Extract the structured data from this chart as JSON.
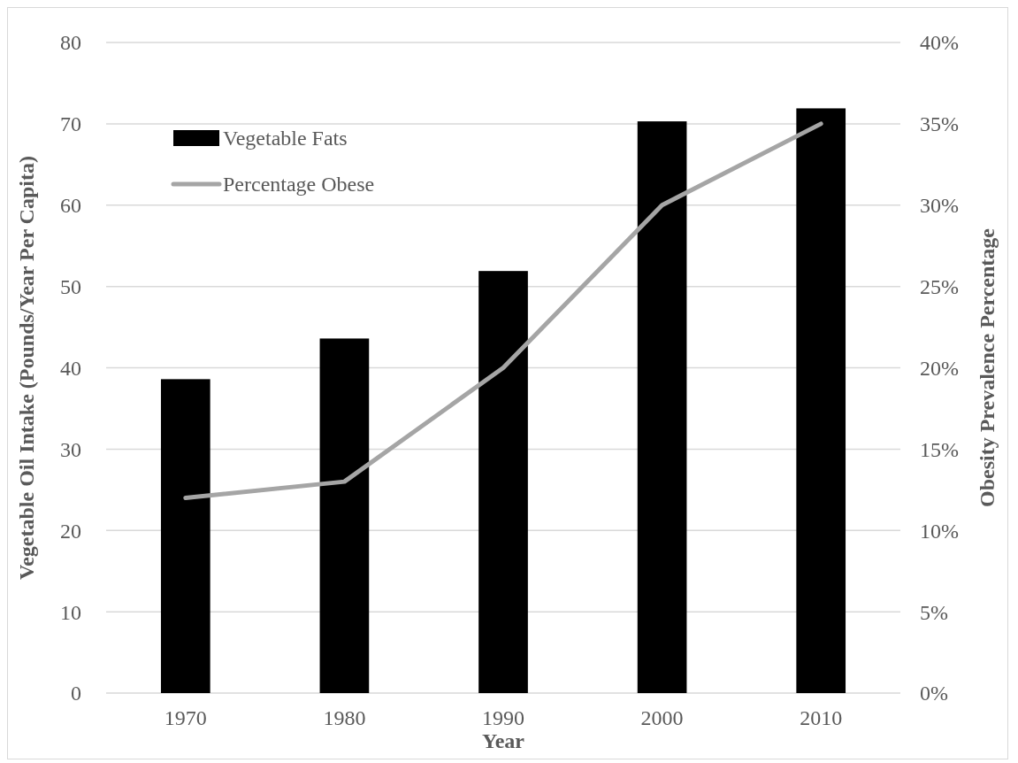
{
  "chart_data": {
    "type": "bar",
    "xlabel": "Year",
    "ylabel": "Vegetable Oil Intake (Pounds/Year Per Capita)",
    "y2label": "Obesity Prevalence Percentage",
    "categories": [
      "1970",
      "1980",
      "1990",
      "2000",
      "2010"
    ],
    "series": [
      {
        "name": "Vegetable Fats",
        "color": "#000000",
        "values": [
          38.6,
          43.6,
          51.9,
          70.3,
          71.9
        ]
      },
      {
        "name": "Percentage Obese",
        "type": "line",
        "axis": "y2",
        "color": "#a5a5a5",
        "values": [
          12,
          13,
          20,
          30,
          35
        ]
      }
    ],
    "ylim": [
      0,
      80
    ],
    "yticks": [
      0,
      10,
      20,
      30,
      40,
      50,
      60,
      70,
      80
    ],
    "y2lim": [
      0,
      40
    ],
    "y2ticks": [
      {
        "value": 0,
        "label": "0%"
      },
      {
        "value": 5,
        "label": "5%"
      },
      {
        "value": 10,
        "label": "10%"
      },
      {
        "value": 15,
        "label": "15%"
      },
      {
        "value": 20,
        "label": "20%"
      },
      {
        "value": 25,
        "label": "25%"
      },
      {
        "value": 30,
        "label": "30%"
      },
      {
        "value": 35,
        "label": "35%"
      },
      {
        "value": 40,
        "label": "40%"
      }
    ],
    "grid": "y",
    "legend": "top left",
    "marker": "none",
    "line_style": "solid"
  }
}
